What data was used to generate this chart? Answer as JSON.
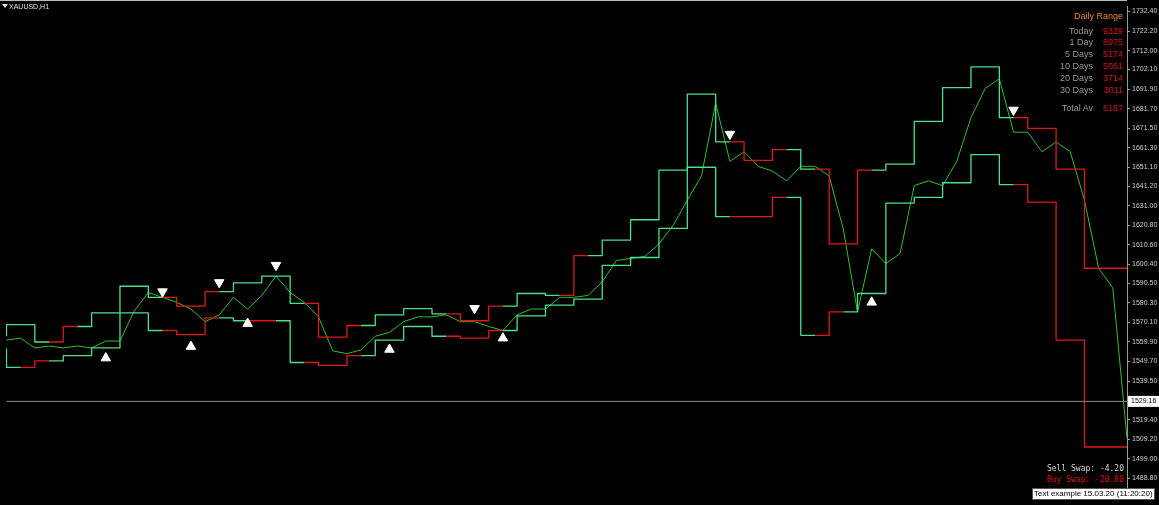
{
  "chart_data": {
    "type": "line",
    "title": "XAUUSD,H1",
    "categories": [
      null,
      null,
      null,
      null,
      null,
      null,
      null,
      null,
      null,
      null,
      null,
      null,
      null,
      null,
      null,
      null,
      null,
      null,
      null,
      null,
      null,
      null,
      null,
      null,
      null,
      null,
      null,
      null,
      null,
      null,
      null,
      null,
      null,
      null,
      null,
      null,
      null,
      null,
      null,
      null,
      null,
      null,
      null,
      null,
      null,
      null,
      null,
      null,
      null,
      null,
      null,
      null,
      null,
      null,
      null,
      null,
      null,
      null,
      null,
      null,
      null,
      null,
      null,
      null,
      null,
      null,
      null,
      null,
      null,
      null,
      null,
      null,
      null,
      null,
      null,
      null,
      null,
      null,
      null,
      null
    ],
    "ylim": [
      1479,
      1735
    ],
    "yticks": [
      {
        "value": 1732.4,
        "label": "1732.40"
      },
      {
        "value": 1722.2,
        "label": "1722.20"
      },
      {
        "value": 1712,
        "label": "1712.00"
      },
      {
        "value": 1702.1,
        "label": "1702.10"
      },
      {
        "value": 1691.9,
        "label": "1691.90"
      },
      {
        "value": 1681.7,
        "label": "1681.70"
      },
      {
        "value": 1671.5,
        "label": "1671.50"
      },
      {
        "value": 1661.3,
        "label": "1661.30"
      },
      {
        "value": 1651.1,
        "label": "1651.10"
      },
      {
        "value": 1641.2,
        "label": "1641.20"
      },
      {
        "value": 1631,
        "label": "1631.00"
      },
      {
        "value": 1620.8,
        "label": "1620.80"
      },
      {
        "value": 1610.6,
        "label": "1610.60"
      },
      {
        "value": 1600.4,
        "label": "1600.40"
      },
      {
        "value": 1590.5,
        "label": "1590.50"
      },
      {
        "value": 1580.3,
        "label": "1580.30"
      },
      {
        "value": 1570.1,
        "label": "1570.10"
      },
      {
        "value": 1559.9,
        "label": "1559.90"
      },
      {
        "value": 1549.7,
        "label": "1549.70"
      },
      {
        "value": 1539.5,
        "label": "1539.50"
      },
      {
        "value": 1519.4,
        "label": "1519.40"
      },
      {
        "value": 1509.2,
        "label": "1509.20"
      },
      {
        "value": 1499,
        "label": "1499.00"
      },
      {
        "value": 1488.8,
        "label": "1488.80"
      }
    ],
    "grid": false,
    "legend": false,
    "marker": "none",
    "series": [
      {
        "color": "#2fbf2f",
        "values": [
          1560.9,
          1561.9,
          1556.8,
          1557.8,
          1556.8,
          1557.8,
          1556.8,
          1560.4,
          1560.4,
          1576.0,
          1585.7,
          1583.2,
          1580.6,
          1577.1,
          1570.5,
          1574.1,
          1583.2,
          1577.1,
          1584.2,
          1594.3,
          1585.7,
          1580.6,
          1573.0,
          1555.3,
          1553.8,
          1555.8,
          1562.9,
          1564.9,
          1570.5,
          1573.0,
          1573.0,
          1574.1,
          1570.5,
          1570.5,
          1568.0,
          1565.9,
          1574.1,
          1577.1,
          1577.1,
          1583.2,
          1583.2,
          1584.2,
          1591.3,
          1602.4,
          1603.5,
          1604.5,
          1611.1,
          1620.7,
          1633.9,
          1646.6,
          1684.6,
          1654.2,
          1659.2,
          1651.6,
          1649.1,
          1644.0,
          1651.6,
          1651.6,
          1646.6,
          1618.7,
          1575.6,
          1608.5,
          1600.9,
          1606.0,
          1641.5,
          1644.0,
          1641.5,
          1654.2,
          1677.0,
          1692.2,
          1697.3,
          1669.4,
          1669.4,
          1659.2,
          1664.3,
          1659.2,
          1633.9,
          1598.4,
          1588.2,
          1509.6
        ]
      },
      {
        "type": "step",
        "color": "#4de08c",
        "values": [
          1562.9,
          1569.0,
          1569.0,
          1559.9,
          null,
          1568.0,
          1568.0,
          1575.1,
          1575.1,
          1589.0,
          1589.0,
          1583.2,
          null,
          null,
          null,
          1586.2,
          1586.2,
          1590.8,
          1590.8,
          1594.3,
          1594.3,
          1580.1,
          null,
          null,
          null,
          1568.5,
          1568.5,
          1574.1,
          1574.1,
          1577.3,
          1577.3,
          1574.6,
          null,
          null,
          null,
          1578.6,
          1578.6,
          1585.2,
          1585.2,
          1584.2,
          null,
          1605.0,
          1605.0,
          1613.1,
          1613.1,
          1623.7,
          1623.7,
          1649.6,
          1649.6,
          1689.3,
          1689.3,
          1664.3,
          null,
          null,
          null,
          1660.3,
          1660.3,
          1650.1,
          null,
          null,
          null,
          1649.6,
          1649.6,
          1652.7,
          1652.7,
          1675.0,
          1675.0,
          1692.7,
          1692.7,
          1703.5,
          1703.5,
          1677.0,
          null,
          null,
          null,
          null,
          null,
          null,
          null,
          null
        ]
      },
      {
        "type": "step",
        "color": "#e01818",
        "values": [
          null,
          null,
          null,
          1559.9,
          1559.9,
          1568.0,
          null,
          null,
          null,
          null,
          null,
          1583.2,
          1583.2,
          1578.6,
          1578.6,
          1586.2,
          null,
          null,
          null,
          null,
          null,
          1580.1,
          1580.1,
          1562.4,
          1562.4,
          1568.5,
          null,
          null,
          null,
          null,
          null,
          1574.6,
          1574.6,
          1571.0,
          1571.0,
          1578.6,
          null,
          null,
          null,
          1584.2,
          1584.2,
          1605.0,
          null,
          null,
          null,
          null,
          null,
          null,
          null,
          null,
          null,
          1664.3,
          1664.3,
          1654.7,
          1654.7,
          1660.3,
          null,
          1650.1,
          1650.1,
          1611.1,
          1611.1,
          1649.6,
          null,
          null,
          null,
          null,
          null,
          null,
          null,
          null,
          null,
          1677.0,
          1677.0,
          1671.4,
          1671.4,
          1650.1,
          1650.1,
          1598.4,
          1598.4,
          1598.4
        ]
      },
      {
        "type": "step",
        "color": "#4de08c",
        "values": [
          1556.5,
          1546.7,
          null,
          1550.0,
          1550.0,
          1552.8,
          1552.8,
          1556.8,
          1556.8,
          1575.1,
          1575.1,
          1565.9,
          null,
          null,
          null,
          1572.5,
          1572.5,
          1571.0,
          null,
          1571.0,
          1571.0,
          1549.2,
          null,
          null,
          null,
          1552.8,
          1552.8,
          1560.9,
          1560.9,
          1568.0,
          1568.0,
          1562.9,
          null,
          null,
          null,
          1565.9,
          1565.9,
          1573.5,
          1573.5,
          1579.1,
          1579.1,
          1582.3,
          1582.3,
          1599.9,
          1599.9,
          1604.0,
          1604.0,
          1619.2,
          1619.2,
          1651.1,
          1651.1,
          1625.3,
          null,
          null,
          null,
          1635.4,
          1635.4,
          1563.4,
          null,
          1575.6,
          1575.6,
          1585.2,
          1585.2,
          1632.4,
          1632.4,
          1635.4,
          1635.4,
          1643.0,
          1643.0,
          1657.7,
          1657.7,
          1642.0,
          null,
          null,
          null,
          null,
          null,
          null,
          null,
          null
        ]
      },
      {
        "type": "step",
        "color": "#e01818",
        "values": [
          null,
          1546.7,
          1546.7,
          1550.0,
          null,
          null,
          null,
          null,
          null,
          null,
          null,
          1565.9,
          1565.9,
          1563.7,
          1563.7,
          1572.5,
          null,
          1571.0,
          1571.0,
          1571.0,
          null,
          1549.2,
          1549.2,
          1547.7,
          1547.7,
          1552.8,
          null,
          null,
          null,
          null,
          null,
          1562.9,
          1562.9,
          1561.9,
          1561.9,
          1565.9,
          null,
          null,
          null,
          null,
          null,
          null,
          null,
          null,
          null,
          null,
          null,
          null,
          null,
          null,
          null,
          1625.3,
          1625.3,
          1625.3,
          1625.3,
          1635.4,
          null,
          1563.4,
          1563.4,
          1575.6,
          null,
          null,
          null,
          null,
          null,
          null,
          null,
          null,
          null,
          null,
          null,
          1642.0,
          1642.0,
          1632.9,
          1632.9,
          1560.9,
          1560.9,
          1505.1,
          1505.1,
          1505.1
        ]
      },
      {
        "type": "scatter",
        "color": "#ffffff",
        "marker": "triangle",
        "values": [
          null,
          null,
          null,
          null,
          null,
          null,
          null,
          1551.5,
          null,
          null,
          null,
          1586.2,
          null,
          1557.5,
          null,
          1591.0,
          null,
          1569.5,
          null,
          1600.0,
          null,
          null,
          null,
          null,
          null,
          null,
          null,
          1556.0,
          null,
          null,
          null,
          null,
          null,
          1577.5,
          null,
          1561.9,
          null,
          null,
          null,
          null,
          null,
          null,
          null,
          null,
          null,
          null,
          null,
          null,
          null,
          null,
          null,
          1668.4,
          null,
          null,
          null,
          null,
          null,
          null,
          null,
          null,
          null,
          1580.6,
          null,
          null,
          null,
          null,
          null,
          null,
          null,
          null,
          null,
          1681.0,
          null,
          null,
          null,
          null,
          null,
          null,
          null,
          null
        ]
      }
    ],
    "ref_lines": [
      {
        "axis": "y",
        "value": 1529.16,
        "label": "1529.16",
        "color": "#8a8a8a"
      }
    ],
    "annotations": [
      "Daily Range",
      "Today",
      "9329",
      "1 Day",
      "8975",
      "5 Days",
      "5174",
      "10 Days",
      "5061",
      "20 Days",
      "3714",
      "30 Days",
      "3011",
      "Total Av",
      "5187",
      "Sell Swap: -4.20",
      "Buy Swap: -20.80",
      "Text example 15.03.20 (11:20:20)"
    ]
  }
}
